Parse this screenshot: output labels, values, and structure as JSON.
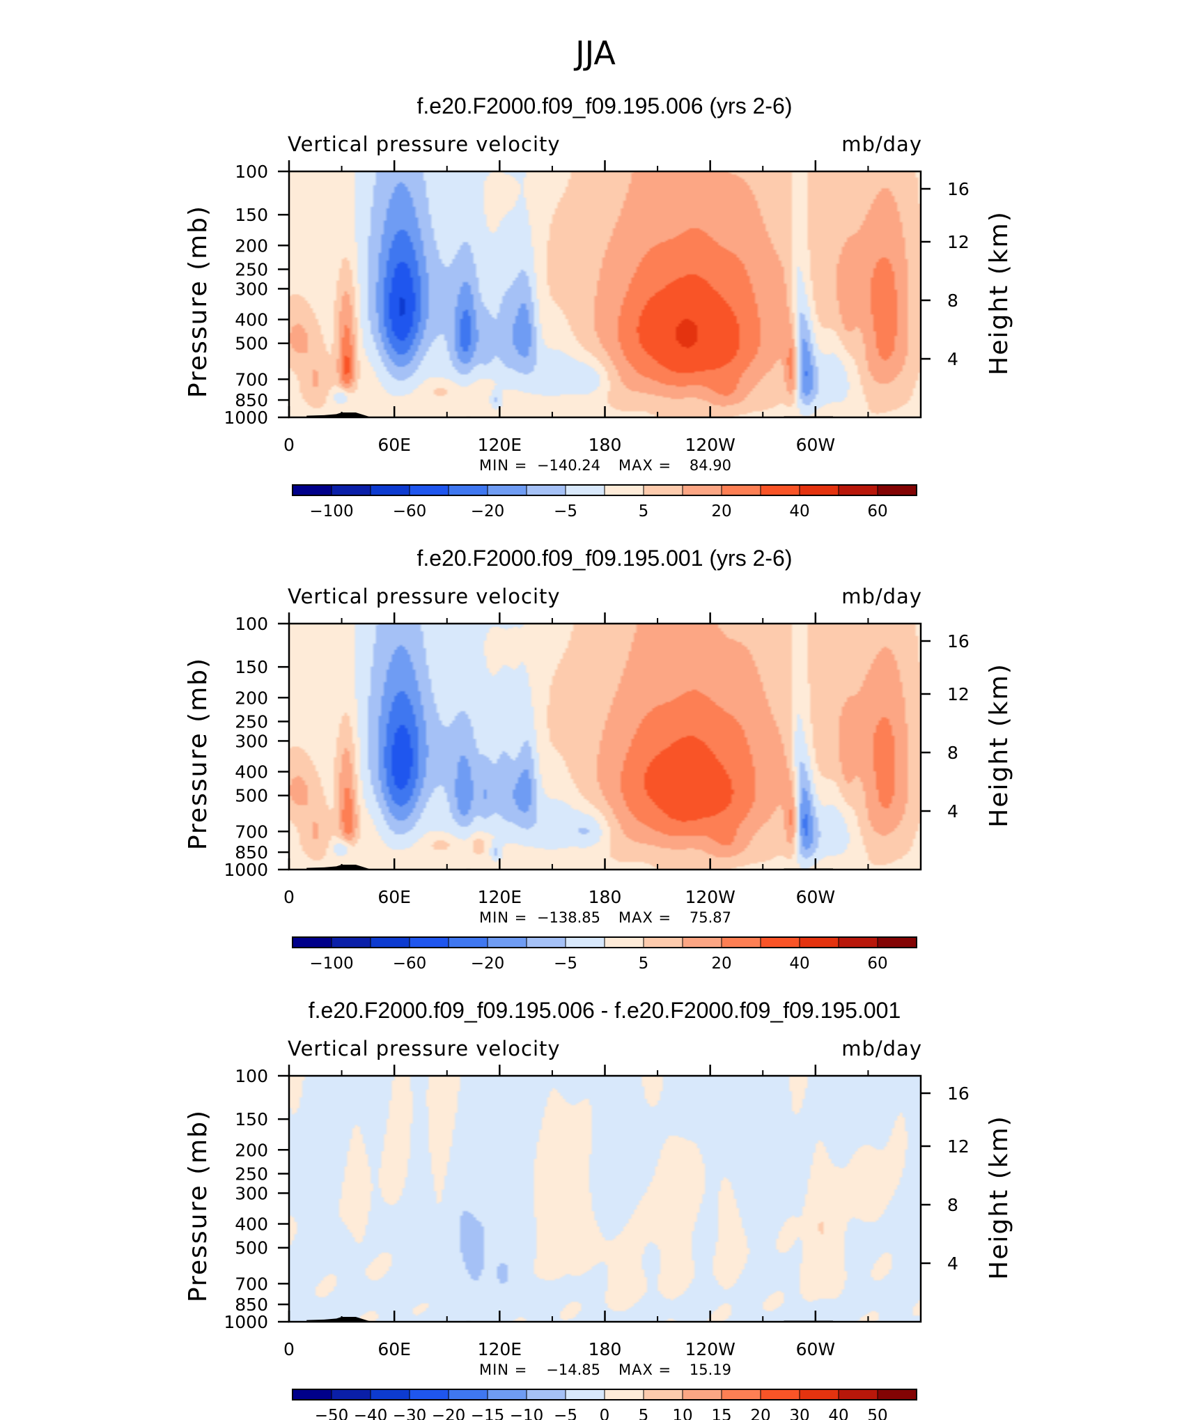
{
  "figure": {
    "title": "JJA"
  },
  "chart_data": [
    {
      "type": "heatmap",
      "title": "f.e20.F2000.f09_f09.195.006 (yrs 2-6)",
      "subtitle_left": "Vertical pressure velocity",
      "subtitle_right": "mb/day",
      "ylabel": "Pressure (mb)",
      "y2label": "Height (km)",
      "x_ticks": [
        "0",
        "60E",
        "120E",
        "180",
        "120W",
        "60W"
      ],
      "y_ticks": [
        100,
        150,
        200,
        250,
        300,
        400,
        500,
        700,
        850,
        1000
      ],
      "y2_ticks": [
        16,
        12,
        8,
        4
      ],
      "stats": {
        "min_label": "MIN =",
        "min": "−140.24",
        "max_label": "MAX =",
        "max": "84.90"
      },
      "colorbar_labels": [
        "−100",
        "−60",
        "−20",
        "−5",
        "5",
        "20",
        "40",
        "60"
      ],
      "colors": [
        "#00008a",
        "#0a1fa8",
        "#0d3bd0",
        "#1f56ee",
        "#3f77f0",
        "#6f9cf3",
        "#a5c1f6",
        "#d8e8fb",
        "#feebd8",
        "#fdcbad",
        "#fca684",
        "#fd7f54",
        "#f95427",
        "#e4330f",
        "#b8170a",
        "#830404"
      ],
      "domain": {
        "x": [
          0,
          360
        ],
        "y": [
          100,
          1000
        ]
      },
      "blobs": [
        [
          5,
          480,
          10,
          140,
          1.6
        ],
        [
          15,
          700,
          8,
          200,
          1.4
        ],
        [
          33,
          420,
          6,
          200,
          2.6
        ],
        [
          33,
          650,
          5,
          150,
          3.0
        ],
        [
          65,
          300,
          14,
          220,
          -2.8
        ],
        [
          63,
          500,
          12,
          250,
          -2.4
        ],
        [
          55,
          250,
          25,
          300,
          -1.4
        ],
        [
          30,
          820,
          5,
          60,
          -1.8
        ],
        [
          95,
          380,
          22,
          320,
          -1.6
        ],
        [
          98,
          500,
          6,
          180,
          -1.0
        ],
        [
          102,
          450,
          6,
          200,
          -2.0
        ],
        [
          112,
          500,
          5,
          150,
          -1.5
        ],
        [
          124,
          450,
          8,
          250,
          -1.8
        ],
        [
          135,
          430,
          7,
          230,
          -2.8
        ],
        [
          155,
          650,
          22,
          180,
          -1.7
        ],
        [
          172,
          700,
          10,
          120,
          -1.2
        ],
        [
          87,
          780,
          8,
          60,
          0.9
        ],
        [
          118,
          850,
          3,
          70,
          -1.5
        ],
        [
          120,
          60,
          25,
          40,
          -0.8
        ],
        [
          150,
          30,
          30,
          30,
          -0.5
        ],
        [
          95,
          20,
          30,
          30,
          -0.4
        ],
        [
          225,
          500,
          42,
          320,
          2.9
        ],
        [
          215,
          350,
          55,
          420,
          1.6
        ],
        [
          260,
          450,
          28,
          350,
          0.9
        ],
        [
          250,
          800,
          12,
          120,
          1.0
        ],
        [
          312,
          250,
          35,
          180,
          1.1
        ],
        [
          340,
          450,
          16,
          360,
          2.6
        ],
        [
          318,
          420,
          5,
          170,
          0.9
        ],
        [
          293,
          550,
          6,
          300,
          -3.4
        ],
        [
          297,
          750,
          8,
          180,
          -1.6
        ],
        [
          312,
          680,
          11,
          200,
          -1.4
        ],
        [
          287,
          630,
          4,
          220,
          3.2
        ],
        [
          289,
          300,
          4,
          200,
          -1.2
        ]
      ],
      "bg": 0.6,
      "zscale": 35
    },
    {
      "type": "heatmap",
      "title": "f.e20.F2000.f09_f09.195.001 (yrs 2-6)",
      "subtitle_left": "Vertical pressure velocity",
      "subtitle_right": "mb/day",
      "ylabel": "Pressure (mb)",
      "y2label": "Height (km)",
      "x_ticks": [
        "0",
        "60E",
        "120E",
        "180",
        "120W",
        "60W"
      ],
      "y_ticks": [
        100,
        150,
        200,
        250,
        300,
        400,
        500,
        700,
        850,
        1000
      ],
      "y2_ticks": [
        16,
        12,
        8,
        4
      ],
      "stats": {
        "min_label": "MIN =",
        "min": "−138.85",
        "max_label": "MAX =",
        "max": "75.87"
      },
      "colorbar_labels": [
        "−100",
        "−60",
        "−20",
        "−5",
        "5",
        "20",
        "40",
        "60"
      ],
      "colors": [
        "#00008a",
        "#0a1fa8",
        "#0d3bd0",
        "#1f56ee",
        "#3f77f0",
        "#6f9cf3",
        "#a5c1f6",
        "#d8e8fb",
        "#feebd8",
        "#fdcbad",
        "#fca684",
        "#fd7f54",
        "#f95427",
        "#e4330f",
        "#b8170a",
        "#830404"
      ],
      "domain": {
        "x": [
          0,
          360
        ],
        "y": [
          100,
          1000
        ]
      },
      "blobs": [
        [
          5,
          480,
          10,
          140,
          1.6
        ],
        [
          15,
          700,
          8,
          200,
          1.4
        ],
        [
          33,
          420,
          6,
          200,
          2.4
        ],
        [
          34,
          650,
          5,
          150,
          2.8
        ],
        [
          65,
          300,
          14,
          220,
          -2.6
        ],
        [
          63,
          520,
          12,
          250,
          -2.4
        ],
        [
          55,
          250,
          25,
          300,
          -1.4
        ],
        [
          30,
          820,
          5,
          60,
          -1.8
        ],
        [
          97,
          400,
          22,
          320,
          -1.7
        ],
        [
          100,
          500,
          6,
          180,
          -1.9
        ],
        [
          112,
          500,
          5,
          150,
          -1.5
        ],
        [
          124,
          450,
          8,
          250,
          -1.8
        ],
        [
          135,
          440,
          7,
          230,
          -2.8
        ],
        [
          155,
          650,
          22,
          180,
          -1.8
        ],
        [
          172,
          700,
          10,
          120,
          -1.3
        ],
        [
          87,
          790,
          8,
          60,
          1.0
        ],
        [
          108,
          800,
          4,
          70,
          1.4
        ],
        [
          118,
          850,
          3,
          70,
          -1.5
        ],
        [
          120,
          60,
          25,
          40,
          -0.8
        ],
        [
          150,
          30,
          30,
          30,
          -0.5
        ],
        [
          130,
          330,
          6,
          120,
          0.8
        ],
        [
          225,
          500,
          42,
          320,
          2.7
        ],
        [
          215,
          350,
          55,
          420,
          1.5
        ],
        [
          260,
          450,
          28,
          350,
          0.8
        ],
        [
          250,
          800,
          12,
          120,
          1.0
        ],
        [
          312,
          250,
          35,
          180,
          1.0
        ],
        [
          340,
          450,
          16,
          360,
          2.5
        ],
        [
          318,
          420,
          5,
          170,
          0.9
        ],
        [
          293,
          560,
          6,
          300,
          -3.5
        ],
        [
          297,
          750,
          8,
          180,
          -1.6
        ],
        [
          312,
          680,
          11,
          200,
          -1.4
        ],
        [
          287,
          630,
          4,
          220,
          3.0
        ],
        [
          289,
          300,
          4,
          200,
          -1.2
        ]
      ],
      "bg": 0.6,
      "zscale": 35
    },
    {
      "type": "heatmap",
      "title": "f.e20.F2000.f09_f09.195.006 - f.e20.F2000.f09_f09.195.001",
      "subtitle_left": "Vertical pressure velocity",
      "subtitle_right": "mb/day",
      "ylabel": "Pressure (mb)",
      "y2label": "Height (km)",
      "x_ticks": [
        "0",
        "60E",
        "120E",
        "180",
        "120W",
        "60W"
      ],
      "y_ticks": [
        100,
        150,
        200,
        250,
        300,
        400,
        500,
        700,
        850,
        1000
      ],
      "y2_ticks": [
        16,
        12,
        8,
        4
      ],
      "stats": {
        "min_label": "MIN =",
        "min": "−14.85",
        "max_label": "MAX =",
        "max": "15.19"
      },
      "colorbar_labels": [
        "−50",
        "−40",
        "−30",
        "−20",
        "−15",
        "−10",
        "−5",
        "0",
        "5",
        "10",
        "15",
        "20",
        "30",
        "40",
        "50"
      ],
      "colors": [
        "#00008a",
        "#0a1fa8",
        "#0d3bd0",
        "#1f56ee",
        "#3f77f0",
        "#6f9cf3",
        "#a5c1f6",
        "#d8e8fb",
        "#feebd8",
        "#fdcbad",
        "#fca684",
        "#fd7f54",
        "#f95427",
        "#e4330f",
        "#b8170a",
        "#830404"
      ],
      "domain": {
        "x": [
          0,
          360
        ],
        "y": [
          100,
          1000
        ]
      },
      "blobs": [
        [
          75,
          400,
          6,
          250,
          -0.9
        ],
        [
          98,
          420,
          8,
          200,
          -0.9
        ],
        [
          106,
          580,
          6,
          250,
          -1.0
        ],
        [
          122,
          650,
          10,
          170,
          -1.0
        ],
        [
          112,
          400,
          5,
          150,
          -0.6
        ],
        [
          134,
          400,
          4,
          200,
          -0.5
        ],
        [
          40,
          350,
          6,
          200,
          0.3
        ],
        [
          80,
          200,
          18,
          200,
          0.3
        ],
        [
          160,
          350,
          15,
          200,
          0.4
        ],
        [
          150,
          500,
          6,
          150,
          0.5
        ],
        [
          190,
          650,
          12,
          180,
          0.3
        ],
        [
          218,
          400,
          10,
          300,
          0.35
        ],
        [
          250,
          450,
          8,
          250,
          0.3
        ],
        [
          303,
          420,
          6,
          180,
          1.1
        ],
        [
          296,
          650,
          4,
          120,
          0.7
        ],
        [
          312,
          550,
          4,
          200,
          0.4
        ],
        [
          180,
          250,
          10,
          140,
          -0.3
        ],
        [
          330,
          300,
          8,
          120,
          0.3
        ],
        [
          20,
          280,
          8,
          150,
          -0.2
        ],
        [
          260,
          220,
          12,
          120,
          -0.25
        ]
      ],
      "bg": -0.08,
      "zscale": 1
    }
  ]
}
